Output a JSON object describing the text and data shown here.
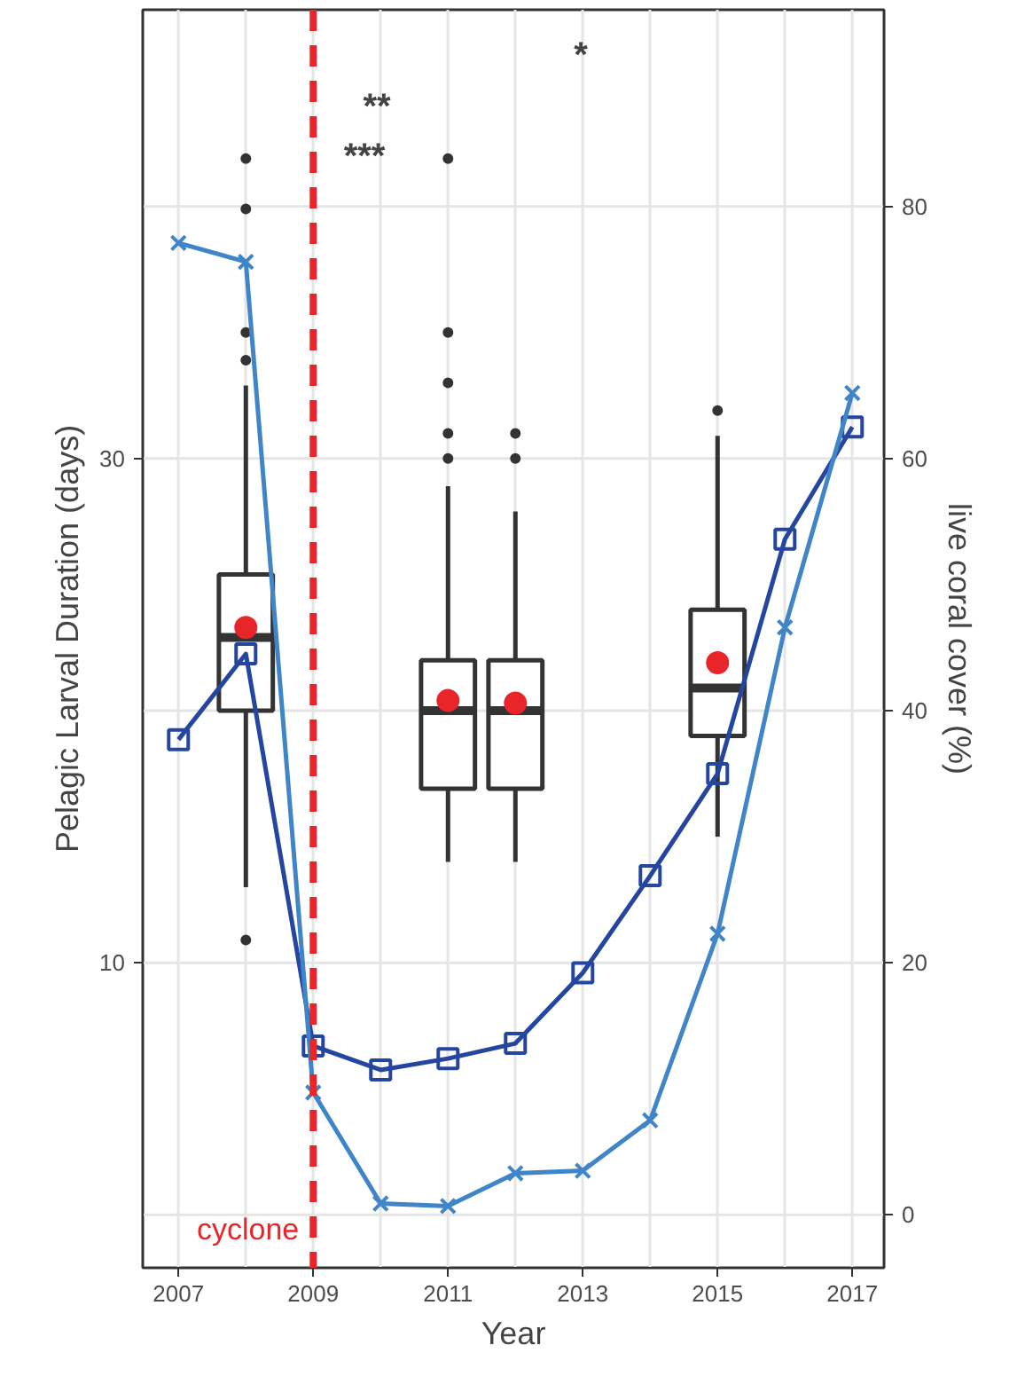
{
  "chart_data": {
    "type": "box",
    "xlabel": "Year",
    "ylabel": "Pelagic Larval Duration (days)",
    "y2label": "live coral cover (%)",
    "xlim": [
      2006.47,
      2017.47
    ],
    "xticks": [
      2007,
      2009,
      2011,
      2013,
      2015,
      2017
    ],
    "ylim": [
      -2.1,
      47.8
    ],
    "yticks": [
      10,
      30
    ],
    "y2lim": [
      -4.2,
      95.6
    ],
    "y2ticks": [
      0,
      20,
      40,
      60,
      80
    ],
    "grid": true,
    "series": [
      {
        "color": "#333333",
        "x": [
          2008,
          2011,
          2012,
          2015
        ],
        "boxes": [
          {
            "low": 13.0,
            "q1": 20.0,
            "median": 22.9,
            "q3": 25.4,
            "high": 32.9,
            "mean": 23.3,
            "outliers": [
              10.9,
              33.9,
              35.0,
              39.9,
              41.9
            ]
          },
          {
            "low": 14.0,
            "q1": 16.9,
            "median": 20.0,
            "q3": 22.0,
            "high": 28.9,
            "mean": 20.4,
            "outliers": [
              30.0,
              31.0,
              33.0,
              35.0,
              41.9
            ]
          },
          {
            "low": 14.0,
            "q1": 16.9,
            "median": 20.0,
            "q3": 22.0,
            "high": 27.9,
            "mean": 20.3,
            "outliers": [
              30.0,
              31.0
            ]
          },
          {
            "low": 15.0,
            "q1": 19.0,
            "median": 20.9,
            "q3": 24.0,
            "high": 30.9,
            "mean": 21.9,
            "outliers": [
              31.9
            ]
          }
        ]
      },
      {
        "type": "line",
        "axis": "y2",
        "color": "#2546a0",
        "marker": "square",
        "x": [
          2007,
          2008,
          2009,
          2010,
          2011,
          2012,
          2013,
          2014,
          2015,
          2016,
          2017
        ],
        "values": [
          37.7,
          44.5,
          13.4,
          11.5,
          12.4,
          13.6,
          19.2,
          26.9,
          35.0,
          53.6,
          62.5
        ]
      },
      {
        "type": "line",
        "axis": "y2",
        "color": "#3f85c8",
        "marker": "cross",
        "x": [
          2007,
          2008,
          2009,
          2010,
          2011,
          2012,
          2013,
          2014,
          2015,
          2016,
          2017
        ],
        "values": [
          77.1,
          75.6,
          9.7,
          0.9,
          0.7,
          3.3,
          3.5,
          7.5,
          22.3,
          46.6,
          65.2
        ]
      }
    ],
    "ref_lines": [
      {
        "axis": "x",
        "value": 2009,
        "label": "cyclone",
        "color": "#e8262a",
        "line_style": "dashed"
      }
    ],
    "annotations": [
      "***",
      "**",
      "*"
    ]
  }
}
